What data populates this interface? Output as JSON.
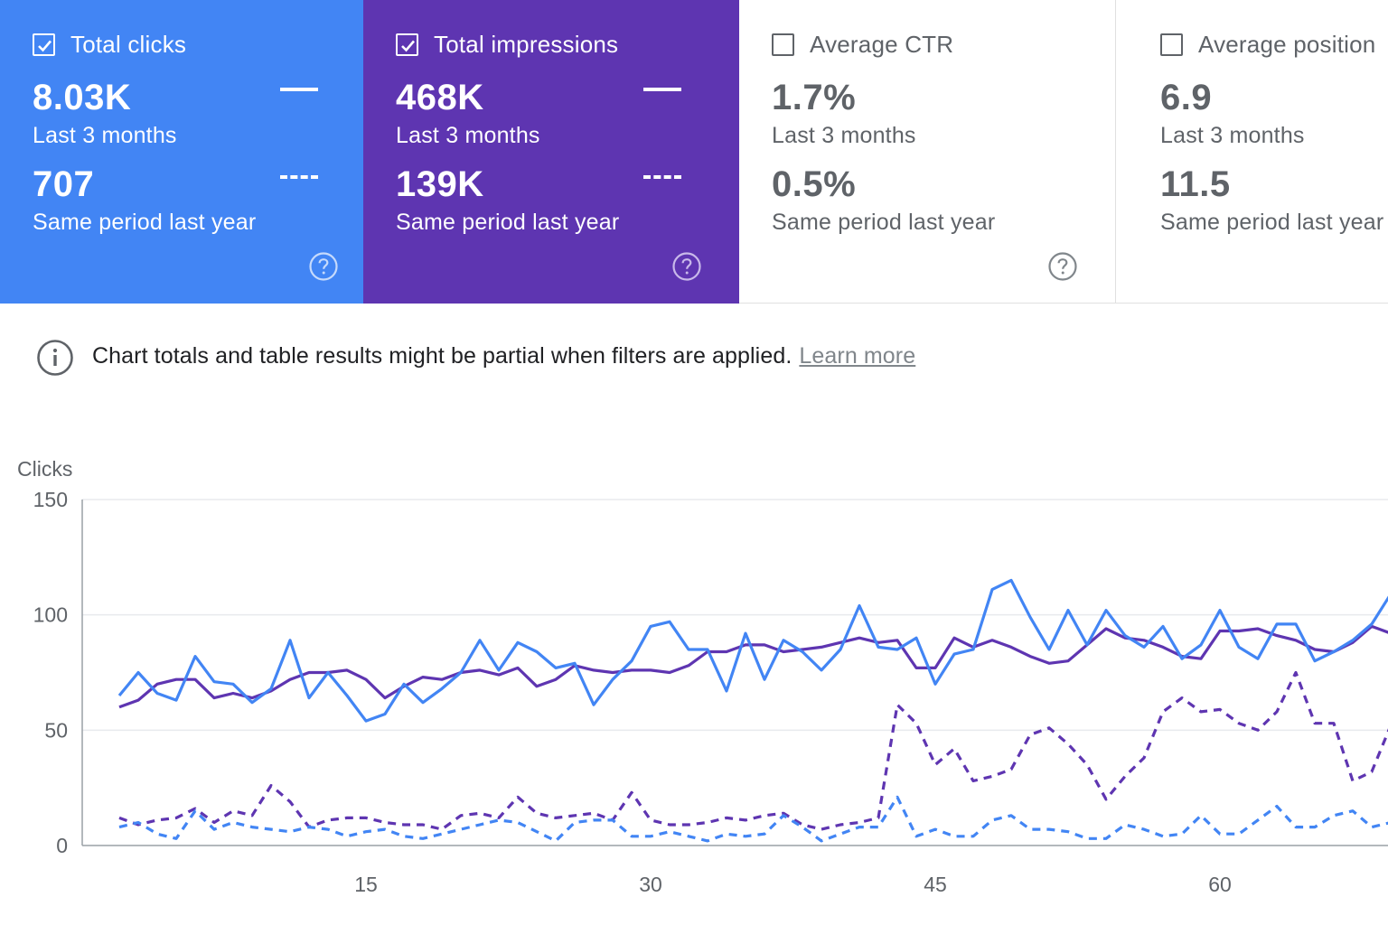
{
  "metrics": [
    {
      "title": "Total clicks",
      "checked": true,
      "color": "#4285f4",
      "value": "8.03K",
      "period": "Last 3 months",
      "compare_value": "707",
      "compare_period": "Same period last year"
    },
    {
      "title": "Total impressions",
      "checked": true,
      "color": "#5e35b1",
      "value": "468K",
      "period": "Last 3 months",
      "compare_value": "139K",
      "compare_period": "Same period last year"
    },
    {
      "title": "Average CTR",
      "checked": false,
      "color": "#ffffff",
      "value": "1.7%",
      "period": "Last 3 months",
      "compare_value": "0.5%",
      "compare_period": "Same period last year"
    },
    {
      "title": "Average position",
      "checked": false,
      "color": "#ffffff",
      "value": "6.9",
      "period": "Last 3 months",
      "compare_value": "11.5",
      "compare_period": "Same period last year"
    }
  ],
  "notice": {
    "icon": "info-icon",
    "text": "Chart totals and table results might be partial when filters are applied.",
    "link": "Learn more"
  },
  "chart_data": {
    "type": "line",
    "ylabel": "Clicks",
    "ylim": [
      0,
      150
    ],
    "yticks": [
      0,
      50,
      100,
      150
    ],
    "xticks": [
      15,
      30,
      45,
      60
    ],
    "xlim": [
      1,
      69
    ],
    "grid": true,
    "x": [
      2,
      3,
      4,
      5,
      6,
      7,
      8,
      9,
      10,
      11,
      12,
      13,
      14,
      15,
      16,
      17,
      18,
      19,
      20,
      21,
      22,
      23,
      24,
      25,
      26,
      27,
      28,
      29,
      30,
      31,
      32,
      33,
      34,
      35,
      36,
      37,
      38,
      39,
      40,
      41,
      42,
      43,
      44,
      45,
      46,
      47,
      48,
      49,
      50,
      51,
      52,
      53,
      54,
      55,
      56,
      57,
      58,
      59,
      60,
      61,
      62,
      63,
      64,
      65,
      66,
      67,
      68,
      69
    ],
    "series": [
      {
        "name": "Total clicks — Last 3 months",
        "color": "#4285f4",
        "style": "solid",
        "values": [
          65,
          75,
          66,
          63,
          82,
          71,
          70,
          62,
          68,
          89,
          64,
          75,
          65,
          54,
          57,
          70,
          62,
          68,
          75,
          89,
          76,
          88,
          84,
          77,
          79,
          61,
          72,
          80,
          95,
          97,
          85,
          85,
          67,
          92,
          72,
          89,
          84,
          76,
          85,
          104,
          86,
          85,
          90,
          70,
          83,
          85,
          111,
          115,
          99,
          85,
          102,
          87,
          102,
          91,
          86,
          95,
          81,
          87,
          102,
          86,
          81,
          96,
          96,
          80,
          84,
          89,
          96,
          109
        ],
        "dashed_values": null
      },
      {
        "name": "Total impressions — Last 3 months",
        "color": "#5e35b1",
        "style": "solid",
        "values": [
          60,
          63,
          70,
          72,
          72,
          64,
          66,
          64,
          67,
          72,
          75,
          75,
          76,
          72,
          64,
          69,
          73,
          72,
          75,
          76,
          74,
          77,
          69,
          72,
          78,
          76,
          75,
          76,
          76,
          75,
          78,
          84,
          84,
          87,
          87,
          84,
          85,
          86,
          88,
          90,
          88,
          89,
          77,
          77,
          90,
          86,
          89,
          86,
          82,
          79,
          80,
          87,
          94,
          90,
          89,
          86,
          82,
          81,
          93,
          93,
          94,
          91,
          89,
          85,
          84,
          88,
          95,
          92
        ],
        "dashed_values": null
      },
      {
        "name": "Total clicks — Same period last year",
        "color": "#4285f4",
        "style": "dashed",
        "values": [
          8,
          10,
          5,
          3,
          15,
          7,
          10,
          8,
          7,
          6,
          8,
          7,
          4,
          6,
          7,
          4,
          3,
          5,
          7,
          9,
          11,
          10,
          6,
          2,
          10,
          11,
          11,
          4,
          4,
          6,
          4,
          2,
          5,
          4,
          5,
          13,
          8,
          2,
          5,
          8,
          8,
          21,
          4,
          7,
          4,
          4,
          11,
          13,
          7,
          7,
          6,
          3,
          3,
          9,
          7,
          4,
          5,
          13,
          5,
          5,
          11,
          17,
          8,
          8,
          13,
          15,
          8,
          10
        ],
        "dashed_values": null
      },
      {
        "name": "Total impressions — Same period last year",
        "color": "#5e35b1",
        "style": "dashed",
        "values": [
          12,
          9,
          11,
          12,
          16,
          10,
          15,
          13,
          26,
          19,
          8,
          11,
          12,
          12,
          10,
          9,
          9,
          7,
          13,
          14,
          12,
          21,
          14,
          12,
          13,
          14,
          11,
          23,
          11,
          9,
          9,
          10,
          12,
          11,
          13,
          14,
          9,
          7,
          9,
          10,
          12,
          61,
          53,
          35,
          42,
          28,
          30,
          33,
          48,
          51,
          44,
          35,
          20,
          30,
          38,
          58,
          64,
          58,
          59,
          53,
          50,
          58,
          75,
          53,
          53,
          28,
          32,
          52
        ]
      }
    ]
  }
}
